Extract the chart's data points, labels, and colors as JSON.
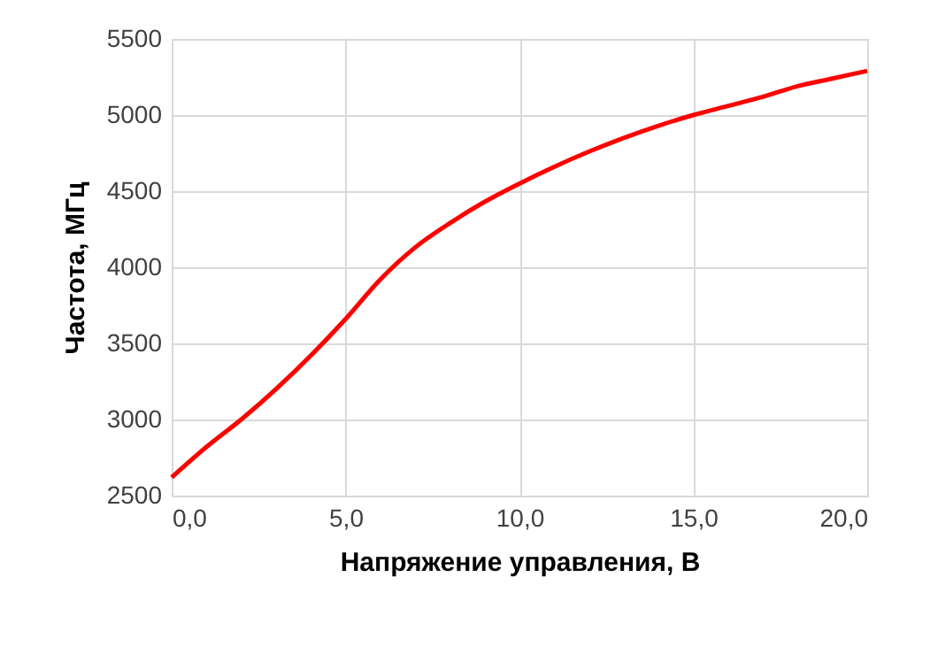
{
  "chart_data": {
    "type": "line",
    "xlabel": "Напряжение управления, В",
    "ylabel": "Частота, МГц",
    "x": [
      0,
      1,
      2,
      3,
      4,
      5,
      6,
      7,
      8,
      9,
      10,
      11,
      12,
      13,
      14,
      15,
      16,
      17,
      18,
      19,
      20
    ],
    "series": [
      {
        "color": "#ff0000",
        "values": [
          2620,
          2820,
          3000,
          3200,
          3420,
          3660,
          3920,
          4130,
          4290,
          4430,
          4550,
          4660,
          4760,
          4850,
          4930,
          5000,
          5060,
          5120,
          5190,
          5240,
          5290
        ]
      }
    ],
    "xlim": [
      0,
      20
    ],
    "xticks": [
      {
        "value": 0,
        "label": "0,0"
      },
      {
        "value": 5,
        "label": "5,0"
      },
      {
        "value": 10,
        "label": "10,0"
      },
      {
        "value": 15,
        "label": "15,0"
      },
      {
        "value": 20,
        "label": "20,0"
      }
    ],
    "ylim": [
      2500,
      5500
    ],
    "yticks": [
      2500,
      3000,
      3500,
      4000,
      4500,
      5000,
      5500
    ],
    "grid": true,
    "legend": false,
    "marker": "none",
    "line_style": "solid"
  }
}
